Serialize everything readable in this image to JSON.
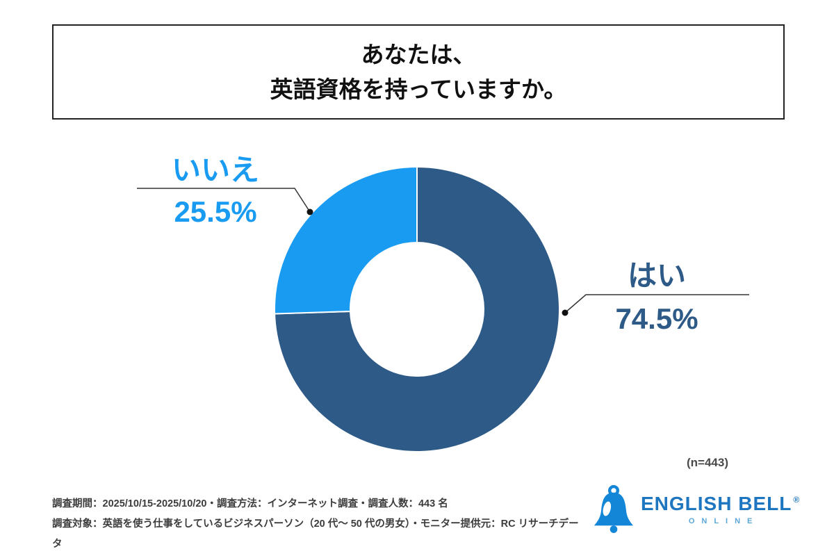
{
  "title": {
    "line1": "あなたは、",
    "line2": "英語資格を持っていますか。"
  },
  "chart_data": {
    "type": "pie",
    "subtype": "donut",
    "title": "あなたは、英語資格を持っていますか。",
    "categories": [
      "はい",
      "いいえ"
    ],
    "values": [
      74.5,
      25.5
    ],
    "unit": "%",
    "colors": [
      "#2e5a88",
      "#1a9bf2"
    ],
    "start_angle_deg": 0,
    "direction": "clockwise",
    "inner_radius_ratio": 0.47,
    "legend_position": "callouts",
    "sample_size_note": "(n=443)"
  },
  "labels": {
    "yes": {
      "name": "はい",
      "value": "74.5%",
      "color": "#2e5a88"
    },
    "no": {
      "name": "いいえ",
      "value": "25.5%",
      "color": "#1a9bf2"
    }
  },
  "note": "(n=443)",
  "footer": {
    "line1": "調査期間：2025/10/15-2025/10/20・調査方法：インターネット調査・調査人数：443 名",
    "line2": "調査対象：英語を使う仕事をしているビジネスパーソン（20 代〜 50 代の男女）・モニター提供元：RC リサーチデータ"
  },
  "logo": {
    "brand": "ENGLISH BELL",
    "registered": "®",
    "sub": "ONLINE",
    "brand_color": "#1d76bf",
    "bell_color": "#1486d8"
  }
}
